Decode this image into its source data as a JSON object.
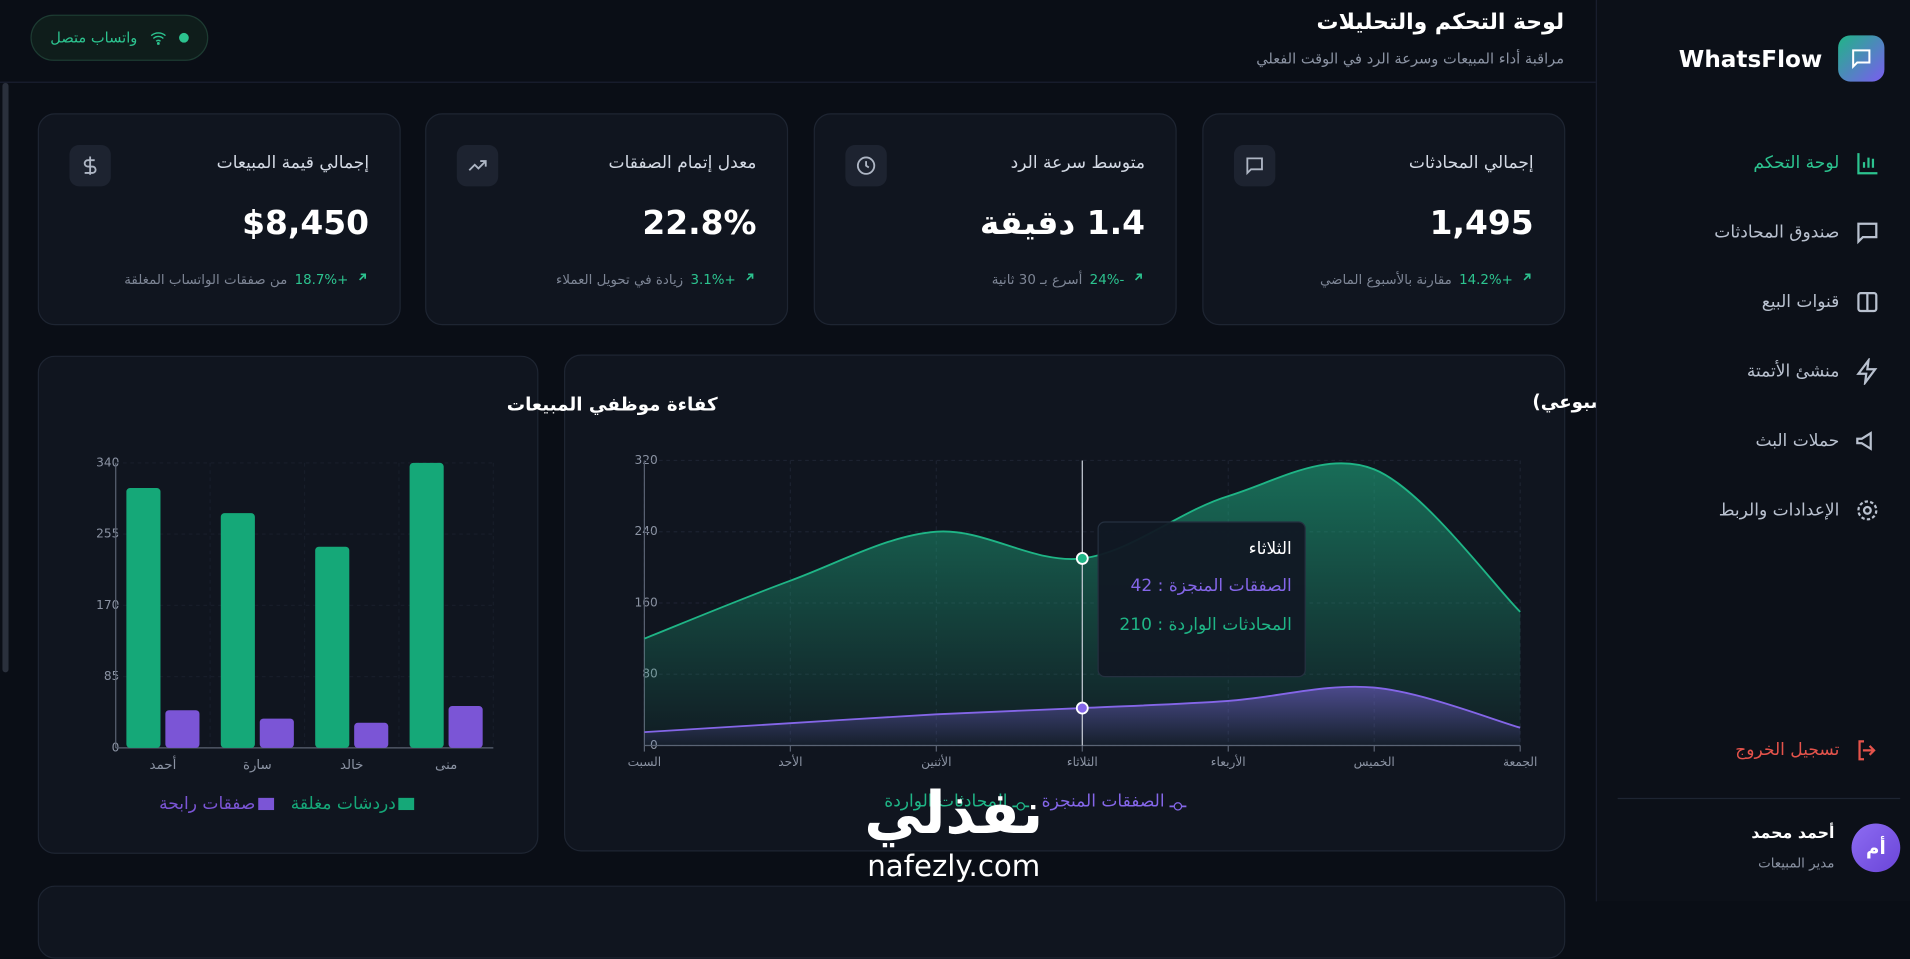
{
  "sidebar": {
    "brand": "WhatsFlow",
    "nav": [
      "لوحة التحكم",
      "صندوق المحادثات",
      "قنوات البيع",
      "منشئ الأتمتة",
      "حملات البث",
      "الإعدادات والربط"
    ],
    "logout": "تسجيل الخروج",
    "user": {
      "initials": "أم",
      "name": "أحمد محمد",
      "role": "مدير المبيعات"
    }
  },
  "header": {
    "title": "لوحة التحكم والتحليلات",
    "subtitle": "مراقبة أداء المبيعات وسرعة الرد في الوقت الفعلي",
    "status": "واتساب متصل"
  },
  "kpis": [
    {
      "label": "إجمالي المحادثات",
      "value": "1,495",
      "change": "+14.2%",
      "note": "مقارنة بالأسبوع الماضي"
    },
    {
      "label": "متوسط سرعة الرد",
      "value": "1.4 دقيقة",
      "change": "-24%",
      "note": "أسرع بـ 30 ثانية"
    },
    {
      "label": "معدل إتمام الصفقات",
      "value": "22.8%",
      "change": "+3.1%",
      "note": "زيادة في تحويل العملاء"
    },
    {
      "label": "إجمالي قيمة المبيعات",
      "value": "$8,450",
      "change": "+18.7%",
      "note": "من صفقات الواتساب المغلقة"
    }
  ],
  "chart_data": [
    {
      "type": "area",
      "title": "حجم الرسائل وإتمام الصفقات (أسبوعي)",
      "categories": [
        "السبت",
        "الأحد",
        "الأثنين",
        "الثلاثاء",
        "الأربعاء",
        "الخميس",
        "الجمعة"
      ],
      "series": [
        {
          "name": "المحادثات الواردة",
          "color": "#1fb586",
          "values": [
            120,
            185,
            240,
            210,
            280,
            310,
            150
          ]
        },
        {
          "name": "الصفقات المنجزة",
          "color": "#8466e8",
          "values": [
            15,
            25,
            35,
            42,
            50,
            65,
            20
          ]
        }
      ],
      "ylim": [
        0,
        320
      ],
      "yticks": [
        0,
        80,
        160,
        240,
        320
      ],
      "grid": true,
      "active_index": 3
    },
    {
      "type": "bar",
      "title": "كفاءة موظفي المبيعات",
      "categories": [
        "أحمد",
        "سارة",
        "خالد",
        "منى"
      ],
      "series": [
        {
          "name": "دردشات مغلقة",
          "color": "#15a878",
          "values": [
            310,
            280,
            240,
            340
          ]
        },
        {
          "name": "صفقات رابحة",
          "color": "#7b55d6",
          "values": [
            45,
            35,
            30,
            50
          ]
        }
      ],
      "ylim": [
        0,
        340
      ],
      "yticks": [
        0,
        85,
        170,
        255,
        340
      ],
      "grid": true
    }
  ],
  "watermark": {
    "brand": "نفذلي",
    "site": "nafezly.com"
  }
}
